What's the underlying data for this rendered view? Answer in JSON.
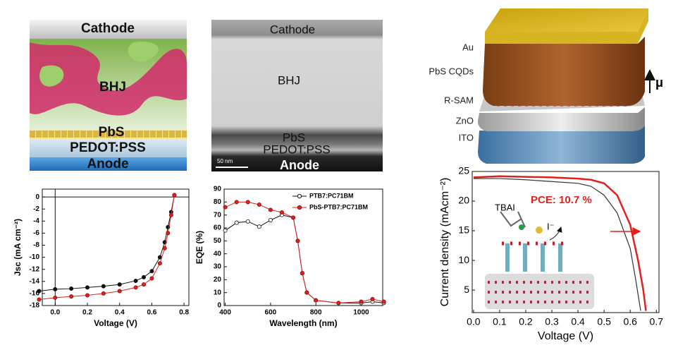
{
  "diagrams": {
    "schematic": {
      "labels": [
        "Cathode",
        "BHJ",
        "PbS",
        "PEDOT:PSS",
        "Anode"
      ]
    },
    "tem": {
      "labels": [
        "Cathode",
        "BHJ",
        "PbS",
        "PEDOT:PSS",
        "Anode"
      ],
      "scale_bar": "50 nm"
    },
    "stack": {
      "labels": [
        "Au",
        "PbS CQDs",
        "R-SAM",
        "ZnO",
        "ITO"
      ],
      "dipole": "μ"
    }
  },
  "chart_data": [
    {
      "type": "line",
      "markers": true,
      "xlabel": "Voltage (V)",
      "ylabel": "Jsc (mA cm⁻²)",
      "x": [
        -0.1,
        0,
        0.1,
        0.2,
        0.3,
        0.4,
        0.5,
        0.55,
        0.6,
        0.65,
        0.68,
        0.7,
        0.72,
        0.74
      ],
      "xlim": [
        -0.08,
        0.83
      ],
      "xticks": [
        {
          "value": 0,
          "label": "0.0"
        },
        0.2,
        0.4,
        0.6,
        0.8
      ],
      "ylim": [
        -18,
        1.3
      ],
      "yticks": [
        0,
        -2,
        -4,
        -6,
        -8,
        -10,
        -12,
        -14,
        -16,
        -18
      ],
      "series": [
        {
          "color": "#111111",
          "values": [
            -15.6,
            -15.3,
            -15.2,
            -15.0,
            -14.8,
            -14.5,
            -13.9,
            -13.3,
            -12.3,
            -10,
            -7.5,
            -5,
            -2.5,
            0.3
          ]
        },
        {
          "color": "#e0201c",
          "values": [
            -17.0,
            -16.7,
            -16.5,
            -16.3,
            -16.0,
            -15.6,
            -15.0,
            -14.5,
            -13.5,
            -11,
            -8.5,
            -6,
            -3,
            0.3
          ]
        }
      ]
    },
    {
      "type": "line",
      "markers": true,
      "xlabel": "Wavelength (nm)",
      "ylabel": "EQE (%)",
      "legend": "upper right",
      "x": [
        400,
        450,
        500,
        550,
        600,
        650,
        700,
        720,
        740,
        760,
        800,
        900,
        1000,
        1050,
        1100
      ],
      "xlim": [
        395,
        1095
      ],
      "xticks": [
        400,
        600,
        800,
        1000
      ],
      "ylim": [
        0,
        90
      ],
      "yticks": [
        0,
        10,
        20,
        30,
        40,
        50,
        60,
        70,
        80,
        90
      ],
      "series": [
        {
          "name": "PTB7:PC71BM",
          "color": "#111111",
          "values": [
            58,
            64,
            65,
            61,
            66,
            70,
            68,
            50,
            25,
            10,
            4,
            2,
            2,
            3,
            2
          ]
        },
        {
          "name": "PbS-PTB7:PC71BM",
          "color": "#e0201c",
          "values": [
            76,
            80,
            80,
            78,
            74,
            72,
            68,
            50,
            25,
            10,
            4,
            2,
            3,
            5,
            3
          ]
        }
      ]
    },
    {
      "type": "line",
      "markers": false,
      "xlabel": "Voltage (V)",
      "ylabel": "Current density (mAcm⁻²)",
      "annotations": [
        "PCE: 10.7 %",
        "TBAI",
        "I⁻"
      ],
      "xlim": [
        -0.005,
        0.71
      ],
      "xticks": [
        {
          "value": 0,
          "label": "0.0"
        },
        0.1,
        0.2,
        0.3,
        0.4,
        0.5,
        0.6,
        0.7
      ],
      "ylim": [
        1.2,
        25
      ],
      "yticks": [
        5,
        10,
        15,
        20,
        25
      ],
      "series": [
        {
          "color": "#333333",
          "x": [
            0,
            0.1,
            0.2,
            0.3,
            0.4,
            0.45,
            0.5,
            0.55,
            0.6,
            0.62,
            0.64
          ],
          "values": [
            23.8,
            23.8,
            23.6,
            23.3,
            23,
            22.5,
            21,
            18,
            12,
            7,
            1.5
          ]
        },
        {
          "color": "#e0201c",
          "x": [
            0,
            0.1,
            0.2,
            0.3,
            0.4,
            0.45,
            0.5,
            0.55,
            0.6,
            0.63,
            0.65,
            0.66
          ],
          "values": [
            24,
            24.2,
            24.1,
            24,
            23.8,
            23.6,
            23,
            21,
            16,
            10,
            5,
            1.5
          ]
        }
      ]
    }
  ]
}
